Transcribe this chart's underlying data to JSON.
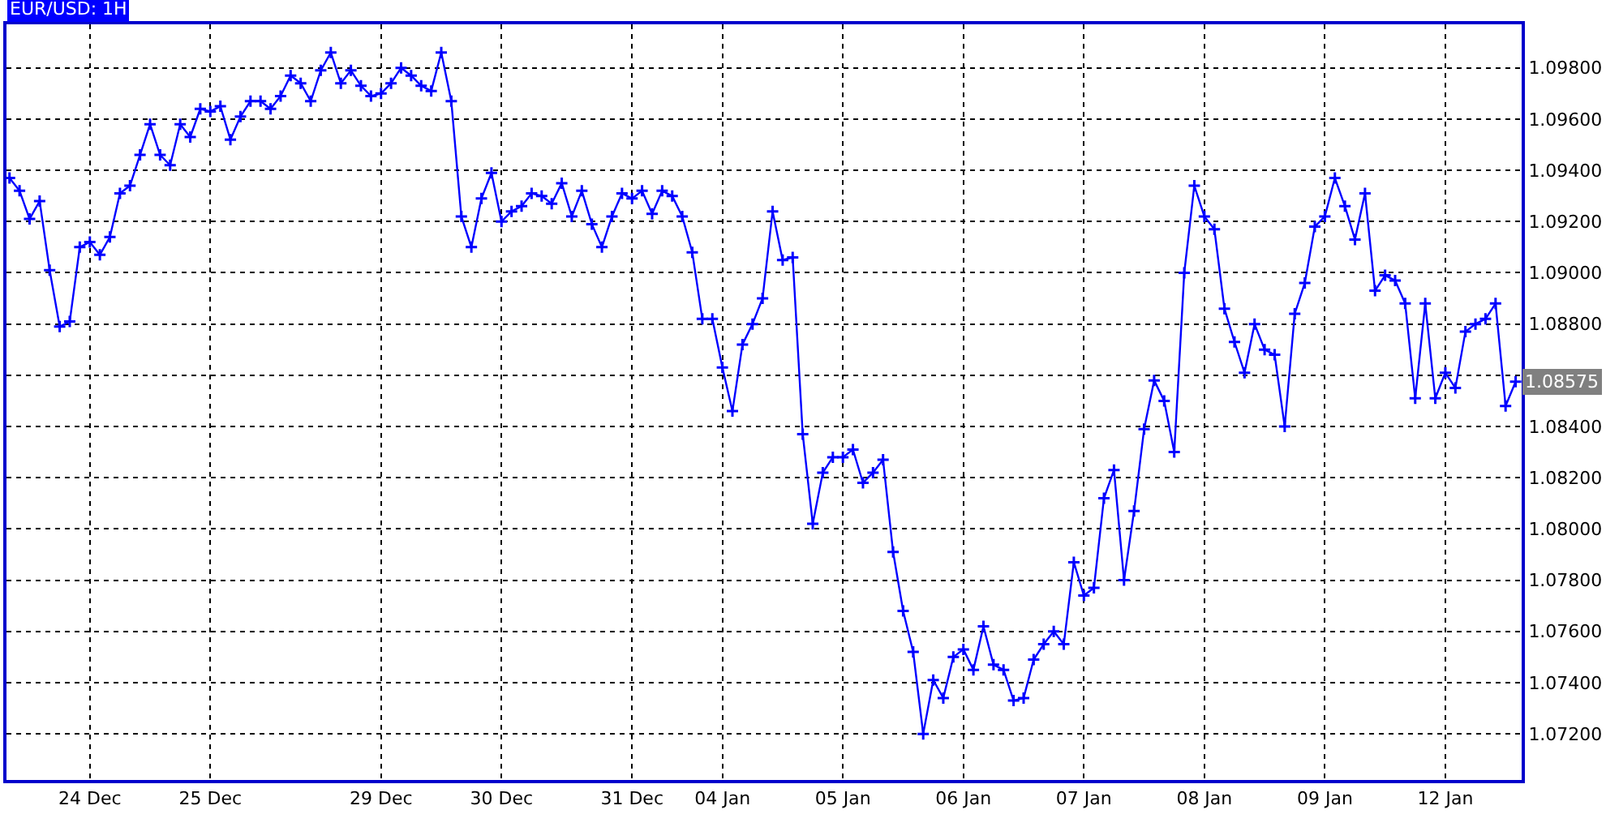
{
  "chart_data": {
    "type": "line",
    "title": "EUR/USD: 1H",
    "categories": [
      null,
      null,
      null,
      null,
      null,
      null,
      null,
      null,
      "24 Dec",
      null,
      null,
      null,
      null,
      null,
      null,
      null,
      null,
      null,
      null,
      null,
      "25 Dec",
      null,
      null,
      null,
      null,
      null,
      null,
      null,
      null,
      null,
      null,
      null,
      null,
      null,
      null,
      null,
      null,
      "29 Dec",
      null,
      null,
      null,
      null,
      null,
      null,
      null,
      null,
      null,
      null,
      null,
      "30 Dec",
      null,
      null,
      null,
      null,
      null,
      null,
      null,
      null,
      null,
      null,
      null,
      null,
      "31 Dec",
      null,
      null,
      null,
      null,
      null,
      null,
      null,
      null,
      "04 Jan",
      null,
      null,
      null,
      null,
      null,
      null,
      null,
      null,
      null,
      null,
      null,
      "05 Jan",
      null,
      null,
      null,
      null,
      null,
      null,
      null,
      null,
      null,
      null,
      null,
      "06 Jan",
      null,
      null,
      null,
      null,
      null,
      null,
      null,
      null,
      null,
      null,
      null,
      "07 Jan",
      null,
      null,
      null,
      null,
      null,
      null,
      null,
      null,
      null,
      null,
      null,
      "08 Jan",
      null,
      null,
      null,
      null,
      null,
      null,
      null,
      null,
      null,
      null,
      null,
      "09 Jan",
      null,
      null,
      null,
      null,
      null,
      null,
      null,
      null,
      null,
      null,
      null,
      "12 Jan",
      null,
      null,
      null,
      null,
      null,
      null,
      null
    ],
    "series": [
      {
        "color": "#0000ff",
        "values": [
          1.0937,
          1.0932,
          1.0921,
          1.0928,
          1.0901,
          1.0879,
          1.0881,
          1.091,
          1.0912,
          1.0907,
          1.0914,
          1.0931,
          1.0934,
          1.0946,
          1.0958,
          1.0946,
          1.0942,
          1.0958,
          1.0953,
          1.0964,
          1.0963,
          1.0965,
          1.0952,
          1.0961,
          1.0967,
          1.0967,
          1.0964,
          1.0969,
          1.0977,
          1.0974,
          1.0967,
          1.0979,
          1.0986,
          1.0974,
          1.0979,
          1.0973,
          1.0969,
          1.097,
          1.0974,
          1.098,
          1.0977,
          1.0973,
          1.0971,
          1.0986,
          1.0967,
          1.0922,
          1.091,
          1.0929,
          1.0939,
          1.092,
          1.0924,
          1.0926,
          1.0931,
          1.093,
          1.0927,
          1.0935,
          1.0922,
          1.0932,
          1.0919,
          1.091,
          1.0922,
          1.0931,
          1.0929,
          1.0932,
          1.0923,
          1.0932,
          1.093,
          1.0922,
          1.0908,
          1.0882,
          1.0882,
          1.0863,
          1.0846,
          1.0872,
          1.088,
          1.089,
          1.0924,
          1.0905,
          1.0906,
          1.0837,
          1.0802,
          1.0822,
          1.0828,
          1.0828,
          1.0831,
          1.0818,
          1.0822,
          1.0827,
          1.0791,
          1.0768,
          1.0752,
          1.072,
          1.0741,
          1.0734,
          1.075,
          1.0753,
          1.0745,
          1.0762,
          1.0747,
          1.0745,
          1.0733,
          1.0734,
          1.0749,
          1.0755,
          1.076,
          1.0755,
          1.0787,
          1.0774,
          1.0777,
          1.0812,
          1.0823,
          1.078,
          1.0807,
          1.0839,
          1.0858,
          1.085,
          1.083,
          1.09,
          1.0934,
          1.0922,
          1.0917,
          1.0886,
          1.0873,
          1.0861,
          1.088,
          1.087,
          1.0868,
          1.084,
          1.0884,
          1.0896,
          1.0918,
          1.0922,
          1.0937,
          1.0926,
          1.0913,
          1.0931,
          1.0893,
          1.0899,
          1.0897,
          1.0888,
          1.0851,
          1.0888,
          1.0851,
          1.0861,
          1.0855,
          1.0877,
          1.088,
          1.0882,
          1.0888,
          1.0848,
          1.08575
        ]
      }
    ],
    "ylim": [
      1.0702,
      1.0997
    ],
    "yticks": [
      {
        "value": 1.072,
        "label": "1.07200"
      },
      {
        "value": 1.074,
        "label": "1.07400"
      },
      {
        "value": 1.076,
        "label": "1.07600"
      },
      {
        "value": 1.078,
        "label": "1.07800"
      },
      {
        "value": 1.08,
        "label": "1.08000"
      },
      {
        "value": 1.082,
        "label": "1.08200"
      },
      {
        "value": 1.084,
        "label": "1.08400"
      },
      {
        "value": 1.086,
        "label": null
      },
      {
        "value": 1.088,
        "label": "1.08800"
      },
      {
        "value": 1.09,
        "label": "1.09000"
      },
      {
        "value": 1.092,
        "label": "1.09200"
      },
      {
        "value": 1.094,
        "label": "1.09400"
      },
      {
        "value": 1.096,
        "label": "1.09600"
      },
      {
        "value": 1.098,
        "label": "1.09800"
      }
    ],
    "annotations": [
      "1.08575"
    ],
    "grid": true,
    "marker": "cross",
    "line_style": "solid"
  }
}
